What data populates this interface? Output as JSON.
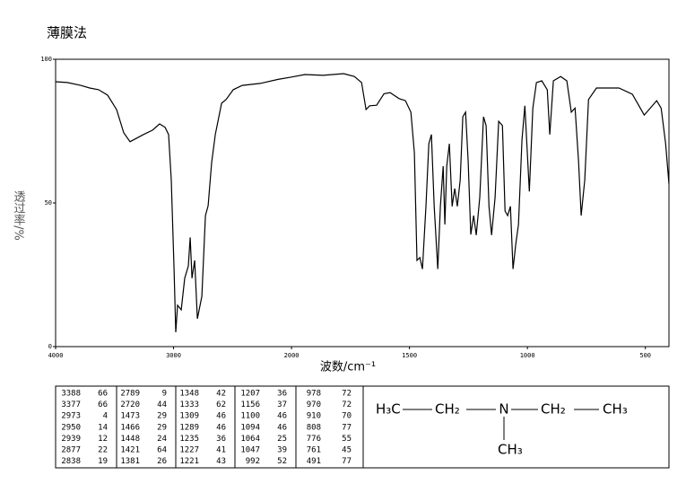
{
  "chart_data": {
    "type": "line",
    "title": "薄膜法",
    "xlabel": "波数/cm⁻¹",
    "ylabel": "透过率/%",
    "color": "#000000",
    "xlim": [
      4000,
      400
    ],
    "xticks": [
      4000,
      3000,
      2000,
      1500,
      1000,
      500
    ],
    "ylim": [
      0,
      100
    ],
    "yticks": [
      0,
      50,
      100
    ],
    "grid": false,
    "x": [
      4000,
      3901,
      3787,
      3711,
      3635,
      3559,
      3483,
      3422,
      3369,
      3255,
      3179,
      3118,
      3072,
      3042,
      3019,
      2996,
      2981,
      2966,
      2935,
      2905,
      2875,
      2859,
      2844,
      2821,
      2798,
      2760,
      2730,
      2707,
      2677,
      2646,
      2593,
      2555,
      2494,
      2418,
      2266,
      2114,
      2000,
      1943,
      1867,
      1779,
      1734,
      1703,
      1684,
      1669,
      1639,
      1608,
      1582,
      1544,
      1517,
      1494,
      1479,
      1468,
      1456,
      1445,
      1430,
      1418,
      1407,
      1395,
      1380,
      1369,
      1357,
      1350,
      1342,
      1331,
      1319,
      1308,
      1297,
      1285,
      1274,
      1262,
      1251,
      1240,
      1228,
      1217,
      1202,
      1186,
      1175,
      1163,
      1152,
      1137,
      1122,
      1106,
      1095,
      1084,
      1072,
      1061,
      1049,
      1038,
      1023,
      1011,
      992,
      977,
      962,
      939,
      916,
      905,
      890,
      859,
      833,
      814,
      798,
      783,
      772,
      757,
      741,
      707,
      612,
      555,
      505,
      479,
      452,
      433,
      414,
      400
    ],
    "values": [
      92.2,
      91.9,
      90.9,
      90,
      89.4,
      87.5,
      82.5,
      74.4,
      71.3,
      73.8,
      75.3,
      77.5,
      76.3,
      73.8,
      58,
      27,
      5,
      14.4,
      12.8,
      23.8,
      28,
      38,
      23.8,
      30,
      9.7,
      17.5,
      45.6,
      49,
      64,
      73.8,
      84.7,
      86,
      89.4,
      90.9,
      91.6,
      93,
      93.8,
      94.7,
      94.4,
      95,
      94,
      91.9,
      82.5,
      83.8,
      84,
      88,
      88.4,
      86.3,
      85.6,
      81.6,
      67.5,
      30,
      31,
      27,
      48.8,
      70.6,
      73.8,
      48.8,
      27,
      48.8,
      62.8,
      42.5,
      62.8,
      70.6,
      48.8,
      55,
      48.8,
      58,
      80,
      81.6,
      64.4,
      39,
      45.6,
      38.8,
      51.9,
      80,
      76.9,
      48.8,
      38.8,
      51.9,
      78.4,
      76.9,
      47.2,
      45.6,
      48.8,
      27,
      36,
      42.5,
      72,
      83.8,
      54,
      83,
      91.9,
      92.5,
      89.4,
      73.8,
      92.5,
      94,
      92.5,
      81.6,
      83,
      64.4,
      45.6,
      58,
      86,
      90,
      90,
      87.8,
      80.6,
      83,
      85.6,
      83,
      70.6,
      56.6
    ]
  },
  "peak_table": [
    [
      [
        3388,
        66
      ],
      [
        3377,
        66
      ],
      [
        2973,
        4
      ],
      [
        2950,
        14
      ],
      [
        2939,
        12
      ],
      [
        2877,
        22
      ],
      [
        2838,
        19
      ]
    ],
    [
      [
        2789,
        9
      ],
      [
        2720,
        44
      ],
      [
        1473,
        29
      ],
      [
        1466,
        29
      ],
      [
        1448,
        24
      ],
      [
        1421,
        64
      ],
      [
        1381,
        26
      ]
    ],
    [
      [
        1348,
        42
      ],
      [
        1333,
        62
      ],
      [
        1309,
        46
      ],
      [
        1289,
        46
      ],
      [
        1235,
        36
      ],
      [
        1227,
        41
      ],
      [
        1221,
        43
      ]
    ],
    [
      [
        1207,
        36
      ],
      [
        1156,
        37
      ],
      [
        1100,
        46
      ],
      [
        1094,
        46
      ],
      [
        1064,
        25
      ],
      [
        1047,
        39
      ],
      [
        992,
        52
      ]
    ],
    [
      [
        978,
        72
      ],
      [
        970,
        72
      ],
      [
        910,
        70
      ],
      [
        808,
        77
      ],
      [
        776,
        55
      ],
      [
        761,
        45
      ],
      [
        491,
        77
      ]
    ]
  ],
  "structure": {
    "groups": [
      "H₃C",
      "CH₂",
      "N",
      "CH₂",
      "CH₃",
      "CH₃"
    ]
  }
}
